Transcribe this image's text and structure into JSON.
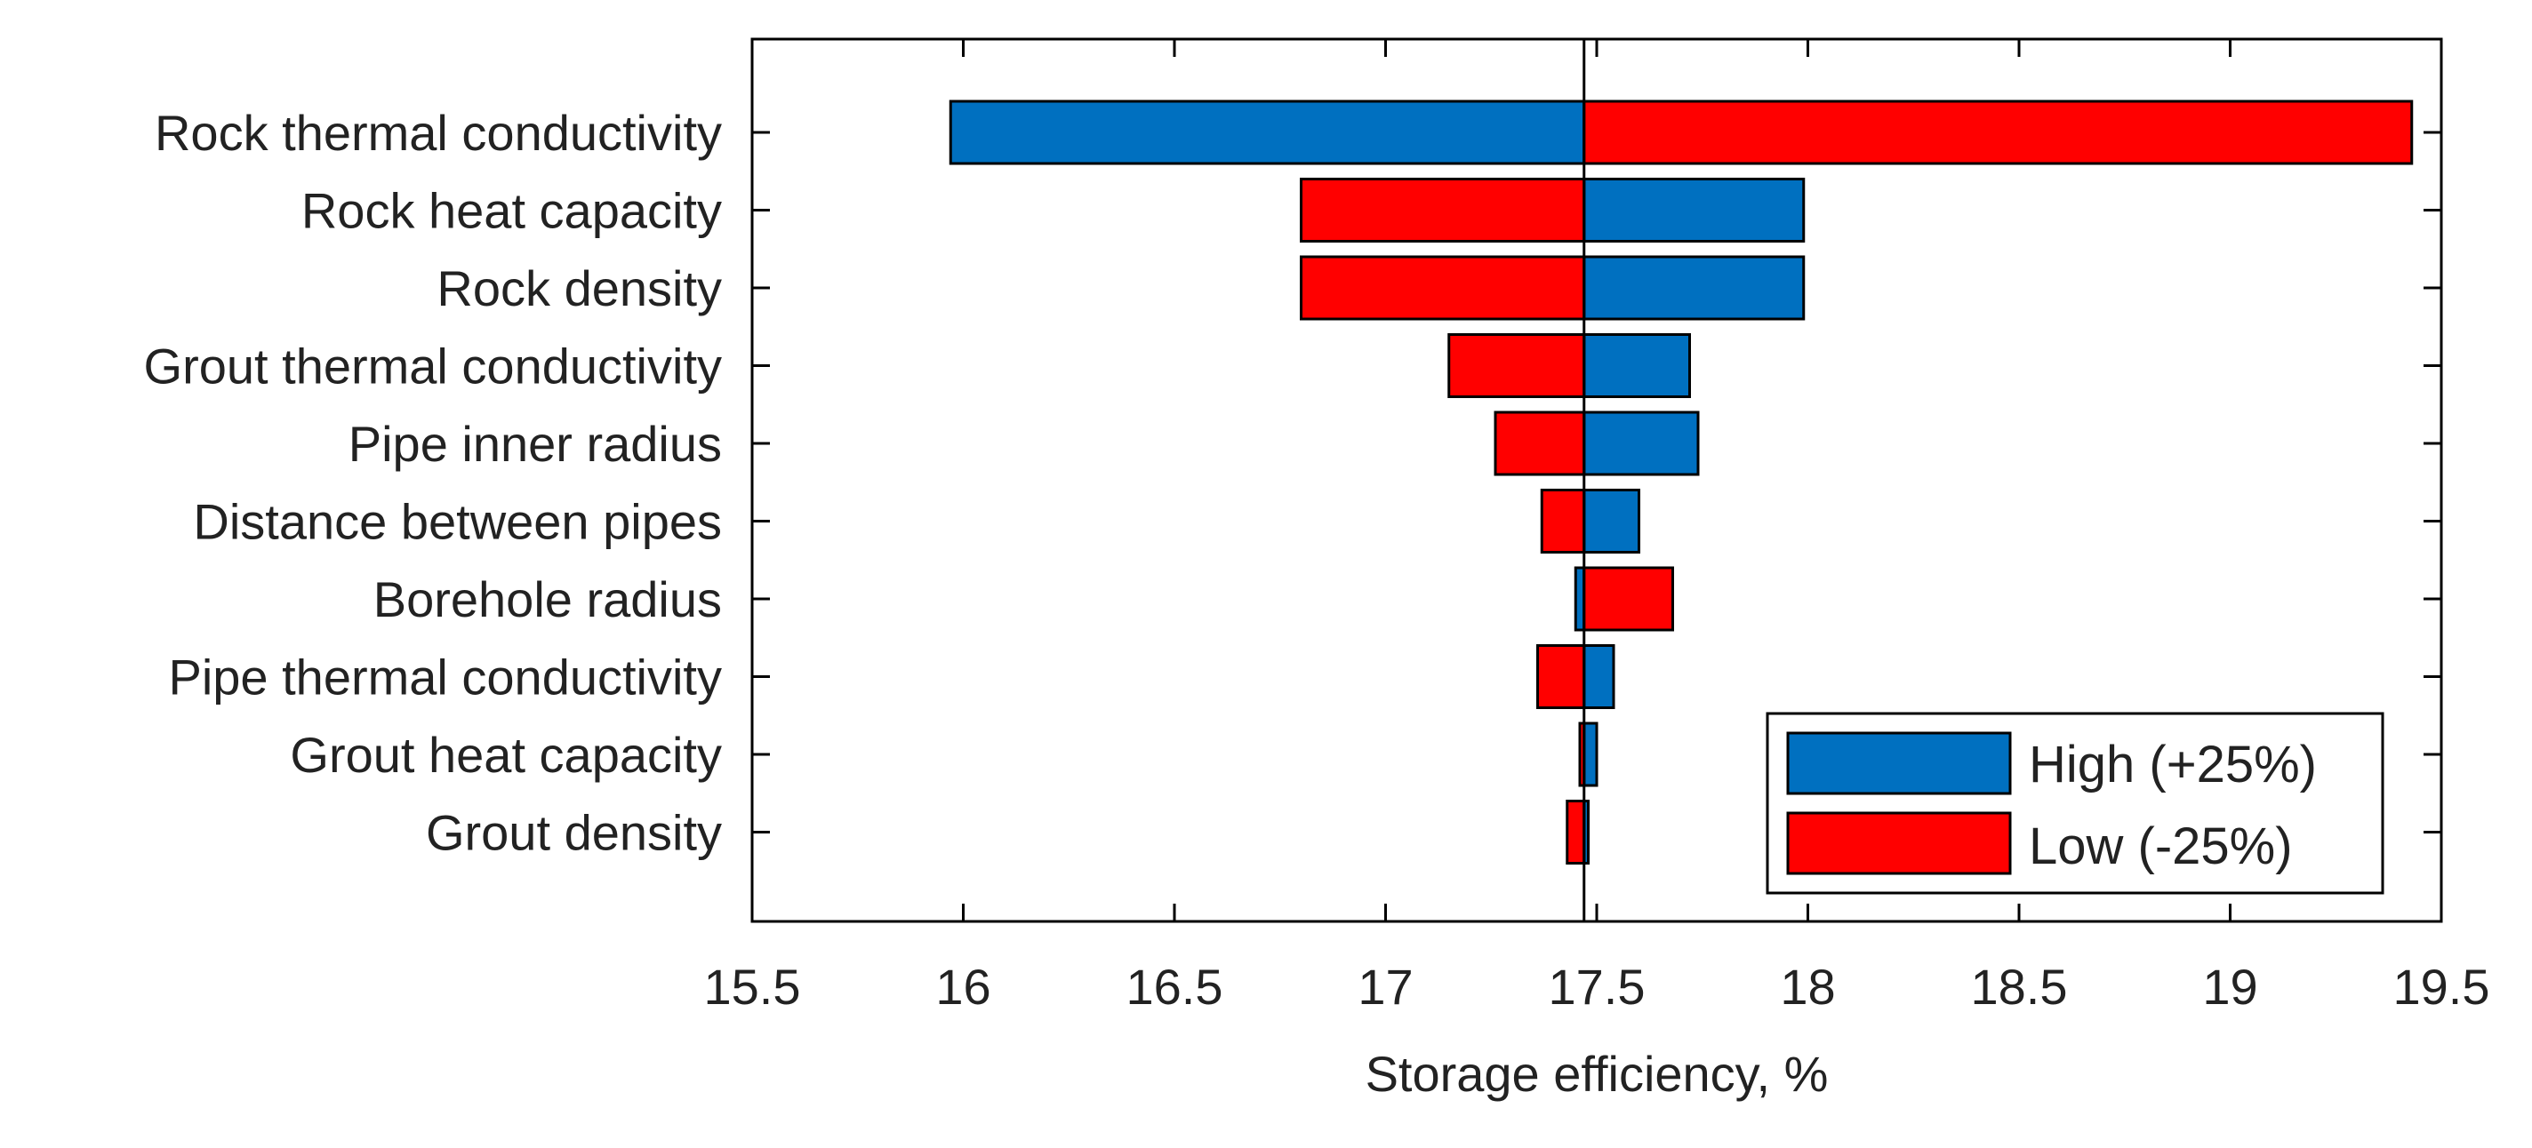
{
  "chart_data": {
    "type": "bar",
    "orientation": "horizontal",
    "subtype": "tornado",
    "title": "",
    "xlabel": "Storage efficiency, %",
    "ylabel": "",
    "xlim": [
      15.5,
      19.5
    ],
    "xticks": [
      "15.5",
      "16",
      "16.5",
      "17",
      "17.5",
      "18",
      "18.5",
      "19",
      "19.5"
    ],
    "baseline": 17.47,
    "grid": false,
    "legend_position": "bottom-right",
    "categories": [
      "Rock thermal conductivity",
      "Rock heat capacity",
      "Rock density",
      "Grout thermal conductivity",
      "Pipe inner radius",
      "Distance between pipes",
      "Borehole radius",
      "Pipe thermal conductivity",
      "Grout heat capacity",
      "Grout density"
    ],
    "series": [
      {
        "name": "High (+25%)",
        "color": "#0070C0",
        "values": [
          15.97,
          17.99,
          17.99,
          17.72,
          17.74,
          17.6,
          17.45,
          17.54,
          17.5,
          17.48
        ]
      },
      {
        "name": "Low (-25%)",
        "color": "#FF0000",
        "values": [
          19.43,
          16.8,
          16.8,
          17.15,
          17.26,
          17.37,
          17.68,
          17.36,
          17.46,
          17.43
        ]
      }
    ]
  }
}
